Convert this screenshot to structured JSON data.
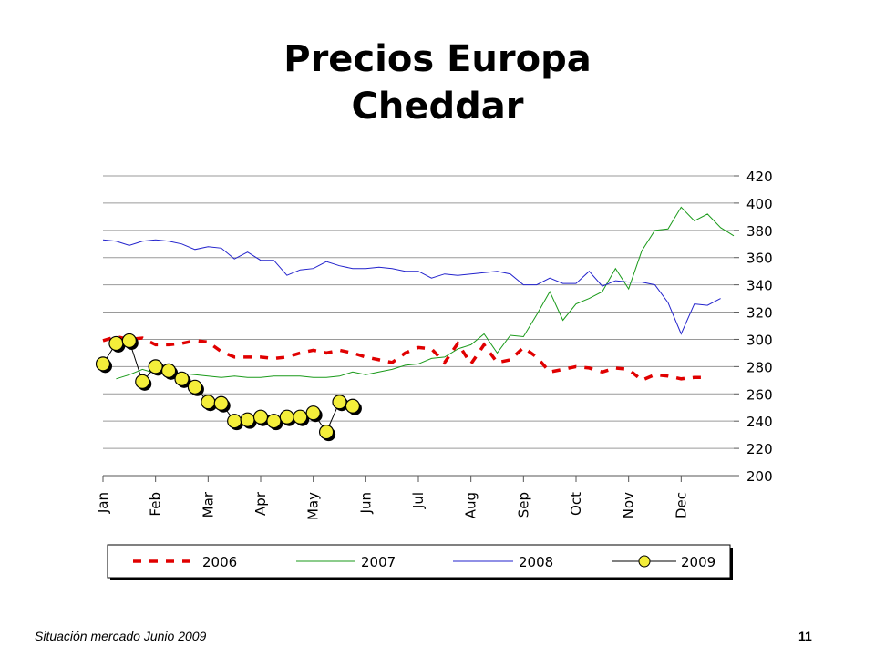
{
  "chart_data": {
    "type": "line",
    "title": "Precios Europa",
    "subtitle": "Cheddar",
    "ylim": [
      200,
      420
    ],
    "yticks": [
      200,
      220,
      240,
      260,
      280,
      300,
      320,
      340,
      360,
      380,
      400,
      420
    ],
    "grid": true,
    "legend_position": "bottom",
    "months": [
      "Jan",
      "Feb",
      "Mar",
      "Apr",
      "May",
      "Jun",
      "Jul",
      "Aug",
      "Sep",
      "Oct",
      "Nov",
      "Dec"
    ],
    "series": [
      {
        "name": "2006",
        "color": "#e00000",
        "style": "dashed",
        "x": [
          0,
          0.25,
          0.5,
          0.75,
          1,
          1.25,
          1.5,
          1.75,
          2,
          2.25,
          2.5,
          2.75,
          3,
          3.25,
          3.5,
          3.75,
          4,
          4.25,
          4.5,
          4.75,
          5,
          5.25,
          5.5,
          5.75,
          6,
          6.25,
          6.5,
          6.75,
          7,
          7.25,
          7.5,
          7.75,
          8,
          8.25,
          8.5,
          8.75,
          9,
          9.25,
          9.5,
          9.75,
          10,
          10.25,
          10.5,
          10.75,
          11,
          11.25,
          11.5
        ],
        "values": [
          299,
          302,
          300,
          301,
          296,
          296,
          297,
          299,
          298,
          291,
          287,
          287,
          287,
          286,
          287,
          290,
          292,
          290,
          292,
          290,
          287,
          285,
          283,
          290,
          294,
          293,
          283,
          297,
          282,
          296,
          283,
          285,
          294,
          287,
          276,
          278,
          280,
          279,
          276,
          279,
          278,
          270,
          274,
          273,
          271,
          272,
          272
        ]
      },
      {
        "name": "2007",
        "color": "#1a9a1a",
        "style": "solid",
        "x": [
          0.25,
          0.5,
          0.75,
          1,
          1.25,
          1.5,
          1.75,
          2,
          2.25,
          2.5,
          2.75,
          3,
          3.25,
          3.5,
          3.75,
          4,
          4.25,
          4.5,
          4.75,
          5,
          5.25,
          5.5,
          5.75,
          6,
          6.25,
          6.5,
          6.75,
          7,
          7.25,
          7.5,
          7.75,
          8,
          8.25,
          8.5,
          8.75,
          9,
          9.25,
          9.5,
          9.75,
          10,
          10.25,
          10.5,
          10.75,
          11,
          11.25,
          11.5,
          11.75,
          12
        ],
        "values": [
          271,
          274,
          278,
          275,
          274,
          275,
          274,
          273,
          272,
          273,
          272,
          272,
          273,
          273,
          273,
          272,
          272,
          273,
          276,
          274,
          276,
          278,
          281,
          282,
          286,
          287,
          293,
          296,
          304,
          290,
          303,
          302,
          318,
          335,
          314,
          326,
          330,
          335,
          352,
          337,
          365,
          380,
          381,
          397,
          387,
          392,
          382,
          376
        ]
      },
      {
        "name": "2008",
        "color": "#2222cc",
        "style": "solid",
        "x": [
          0,
          0.25,
          0.5,
          0.75,
          1,
          1.25,
          1.5,
          1.75,
          2,
          2.25,
          2.5,
          2.75,
          3,
          3.25,
          3.5,
          3.75,
          4,
          4.25,
          4.5,
          4.75,
          5,
          5.25,
          5.5,
          5.75,
          6,
          6.25,
          6.5,
          6.75,
          7,
          7.25,
          7.5,
          7.75,
          8,
          8.25,
          8.5,
          8.75,
          9,
          9.25,
          9.5,
          9.75,
          10,
          10.25,
          10.5,
          10.75,
          11,
          11.25,
          11.5,
          11.75
        ],
        "values": [
          373,
          372,
          369,
          372,
          373,
          372,
          370,
          366,
          368,
          367,
          359,
          364,
          358,
          358,
          347,
          351,
          352,
          357,
          354,
          352,
          352,
          353,
          352,
          350,
          350,
          345,
          348,
          347,
          348,
          349,
          350,
          348,
          340,
          340,
          345,
          341,
          341,
          350,
          339,
          343,
          342,
          342,
          340,
          327,
          304,
          326,
          325,
          330
        ]
      },
      {
        "name": "2009",
        "color": "#000000",
        "marker_fill": "#f4ee3a",
        "style": "solid-marker",
        "x": [
          0,
          0.25,
          0.5,
          0.75,
          1,
          1.25,
          1.5,
          1.75,
          2,
          2.25,
          2.5,
          2.75,
          3,
          3.25,
          3.5,
          3.75,
          4,
          4.25,
          4.5,
          4.75
        ],
        "values": [
          282,
          297,
          299,
          269,
          280,
          277,
          271,
          265,
          254,
          253,
          240,
          241,
          243,
          240,
          243,
          243,
          246,
          232,
          254,
          251
        ]
      }
    ]
  },
  "footer": {
    "source": "Situación mercado Junio 2009",
    "page": "11"
  }
}
